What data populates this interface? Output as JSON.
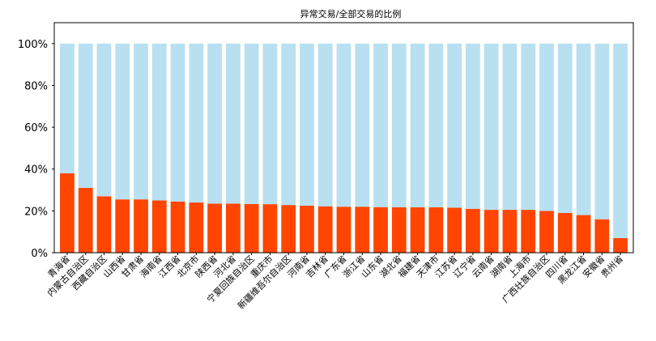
{
  "chart_data": {
    "type": "bar",
    "title": "异常交易/全部交易的比例",
    "xlabel": "",
    "ylabel": "",
    "ylim": [
      0,
      1.1
    ],
    "yticks": [
      0,
      0.2,
      0.4,
      0.6,
      0.8,
      1.0
    ],
    "ytick_labels": [
      "0%",
      "20%",
      "40%",
      "60%",
      "80%",
      "100%"
    ],
    "categories": [
      "青海省",
      "内蒙古自治区",
      "西藏自治区",
      "山西省",
      "甘肃省",
      "海南省",
      "江西省",
      "北京市",
      "陕西省",
      "河北省",
      "宁夏回族自治区",
      "重庆市",
      "新疆维吾尔自治区",
      "河南省",
      "吉林省",
      "广东省",
      "浙江省",
      "山东省",
      "湖北省",
      "福建省",
      "天津市",
      "江苏省",
      "辽宁省",
      "云南省",
      "湖南省",
      "上海市",
      "广西壮族自治区",
      "四川省",
      "黑龙江省",
      "安徽省",
      "贵州省"
    ],
    "series": [
      {
        "values": [
          0.38,
          0.31,
          0.27,
          0.255,
          0.255,
          0.25,
          0.245,
          0.24,
          0.235,
          0.235,
          0.233,
          0.232,
          0.228,
          0.225,
          0.222,
          0.22,
          0.22,
          0.218,
          0.217,
          0.217,
          0.217,
          0.215,
          0.21,
          0.205,
          0.205,
          0.205,
          0.2,
          0.19,
          0.18,
          0.16,
          0.07
        ],
        "color": "#ff4500"
      },
      {
        "values": [
          0.62,
          0.69,
          0.73,
          0.745,
          0.745,
          0.75,
          0.755,
          0.76,
          0.765,
          0.765,
          0.767,
          0.768,
          0.772,
          0.775,
          0.778,
          0.78,
          0.78,
          0.782,
          0.783,
          0.783,
          0.783,
          0.785,
          0.79,
          0.795,
          0.795,
          0.795,
          0.8,
          0.81,
          0.82,
          0.84,
          0.93
        ],
        "color": "#b8e0f0"
      }
    ],
    "stacked": true,
    "grid": false,
    "legend": "none"
  }
}
